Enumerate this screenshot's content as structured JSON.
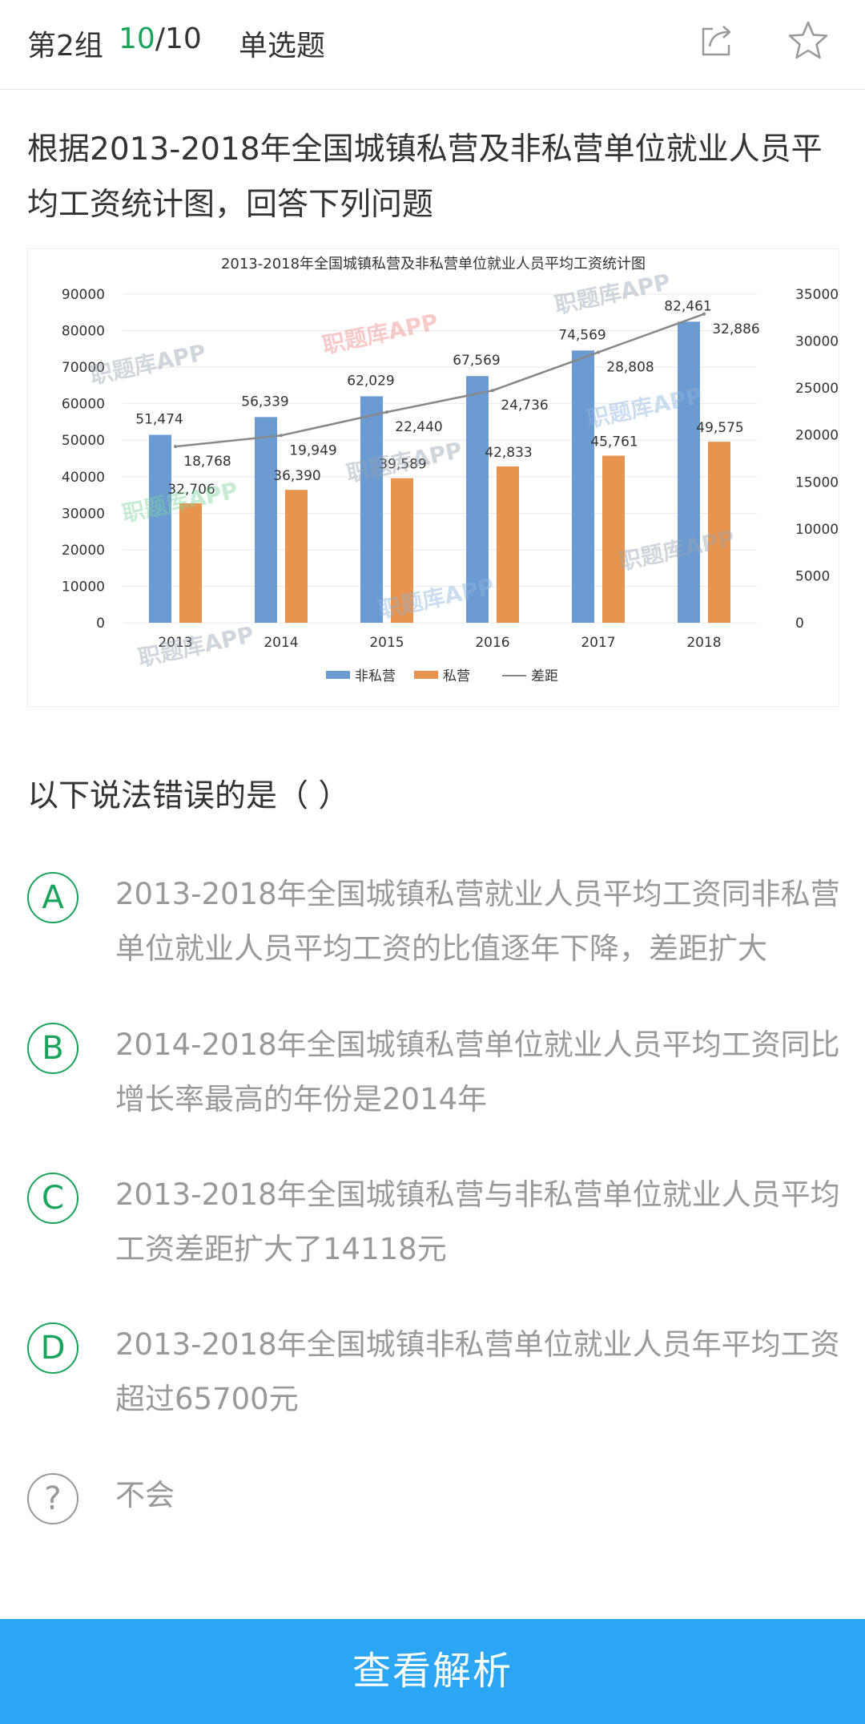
{
  "header": {
    "group": "第2组",
    "progress_current": "10",
    "progress_total": "/10",
    "question_type": "单选题",
    "icons": [
      "share-icon",
      "star-icon"
    ]
  },
  "stem": "根据2013-2018年全国城镇私营及非私营单位就业人员平均工资统计图，回答下列问题",
  "chart_data": {
    "type": "bar",
    "title": "2013-2018年全国城镇私营及非私营单位就业人员平均工资统计图",
    "categories": [
      "2013",
      "2014",
      "2015",
      "2016",
      "2017",
      "2018"
    ],
    "series": [
      {
        "name": "非私营",
        "type": "bar",
        "axis": "left",
        "color": "#6b9bd1",
        "values": [
          51474,
          56339,
          62029,
          67569,
          74569,
          82461
        ],
        "labels": [
          "51,474",
          "56,339",
          "62,029",
          "67,569",
          "74,569",
          "82,461"
        ]
      },
      {
        "name": "私营",
        "type": "bar",
        "axis": "left",
        "color": "#e9944e",
        "values": [
          32706,
          36390,
          39589,
          42833,
          45761,
          49575
        ],
        "labels": [
          "32,706",
          "36,390",
          "39,589",
          "42,833",
          "45,761",
          "49,575"
        ]
      },
      {
        "name": "差距",
        "type": "line",
        "axis": "right",
        "color": "#888888",
        "values": [
          18768,
          19949,
          22440,
          24736,
          28808,
          32886
        ],
        "labels": [
          "18,768",
          "19,949",
          "22,440",
          "24,736",
          "28,808",
          "32,886"
        ]
      }
    ],
    "ylim_left": [
      0,
      90000
    ],
    "yticks_left": [
      "0",
      "10000",
      "20000",
      "30000",
      "40000",
      "50000",
      "60000",
      "70000",
      "80000",
      "90000"
    ],
    "ylim_right": [
      0,
      35000
    ],
    "yticks_right": [
      "0",
      "5000",
      "10000",
      "15000",
      "20000",
      "25000",
      "30000",
      "35000"
    ],
    "grid": true,
    "legend_position": "bottom",
    "watermark": "职题库APP"
  },
  "question": "以下说法错误的是（ ）",
  "options": [
    {
      "letter": "A",
      "text": "2013-2018年全国城镇私营就业人员平均工资同非私营单位就业人员平均工资的比值逐年下降，差距扩大"
    },
    {
      "letter": "B",
      "text": "2014-2018年全国城镇私营单位就业人员平均工资同比增长率最高的年份是2014年"
    },
    {
      "letter": "C",
      "text": "2013-2018年全国城镇私营与非私营单位就业人员平均工资差距扩大了14118元"
    },
    {
      "letter": "D",
      "text": "2013-2018年全国城镇非私营单位就业人员年平均工资超过65700元"
    }
  ],
  "dont_know": {
    "symbol": "?",
    "label": "不会"
  },
  "bottom_button": "查看解析"
}
